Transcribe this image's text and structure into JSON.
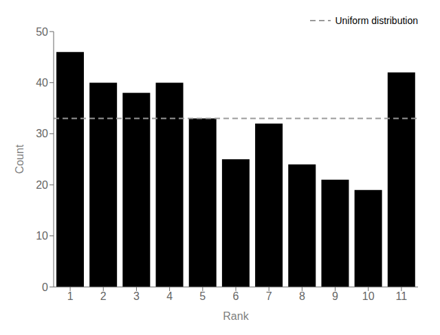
{
  "chart_data": {
    "type": "bar",
    "x": [
      1,
      2,
      3,
      4,
      5,
      6,
      7,
      8,
      9,
      10,
      11
    ],
    "series": [
      {
        "type": "bar",
        "values": [
          46,
          40,
          38,
          40,
          33,
          25,
          32,
          24,
          21,
          19,
          42
        ]
      },
      {
        "type": "hline",
        "name": "Uniform distribution",
        "value": 33.0,
        "color": "#999999",
        "line_style": "dashed"
      }
    ],
    "x_label": "Rank",
    "y_label": "Count",
    "xlim": [
      0.5,
      11.5
    ],
    "xticks": [
      1,
      2,
      3,
      4,
      5,
      6,
      7,
      8,
      9,
      10,
      11
    ],
    "ylim": [
      0,
      50
    ],
    "yticks": [
      0,
      10,
      20,
      30,
      40,
      50
    ],
    "legend": "upper right",
    "grid": false
  }
}
